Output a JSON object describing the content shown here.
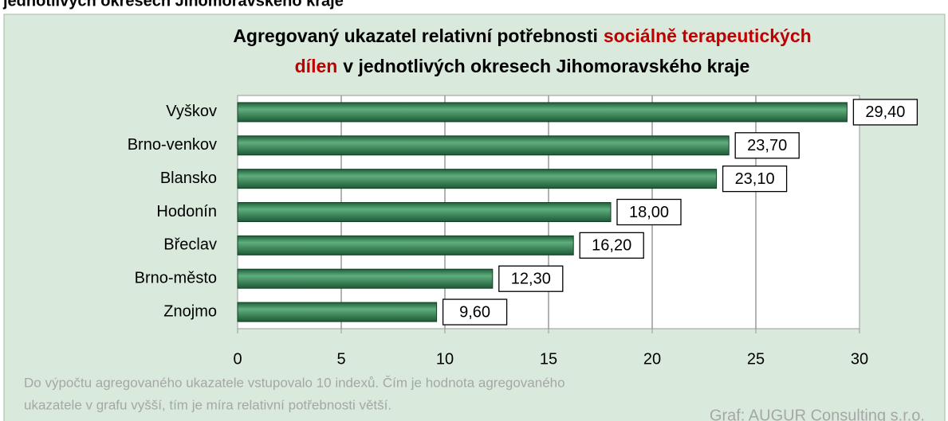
{
  "header_text": "jednotlivých okresech Jihomoravského kraje",
  "chart_data": {
    "type": "bar",
    "orientation": "horizontal",
    "title": [
      [
        "Agregovaný ukazatel relativní potřebnosti",
        "sociálně terapeutických"
      ],
      [
        "dílen",
        "v jednotlivých okresech Jihomoravského kraje"
      ]
    ],
    "title_highlight_color": "#c00000",
    "categories": [
      "Vyškov",
      "Brno-venkov",
      "Blansko",
      "Hodonín",
      "Břeclav",
      "Brno-město",
      "Znojmo"
    ],
    "values": [
      29.4,
      23.7,
      23.1,
      18.0,
      16.2,
      12.3,
      9.6
    ],
    "value_labels": [
      "29,40",
      "23,70",
      "23,10",
      "18,00",
      "16,20",
      "12,30",
      "9,60"
    ],
    "color": "#2e7d4f",
    "xlim": [
      0,
      30
    ],
    "xticks": [
      0,
      5,
      10,
      15,
      20,
      25,
      30
    ],
    "grid": true,
    "note": [
      "Do výpočtu agregovaného ukazatele vstupovalo  10 indexů. Čím je hodnota agregovaného",
      "ukazatele v grafu vyšší, tím je míra relativní potřebnosti větší."
    ],
    "source": "Graf: AUGUR Consulting s.r.o."
  }
}
